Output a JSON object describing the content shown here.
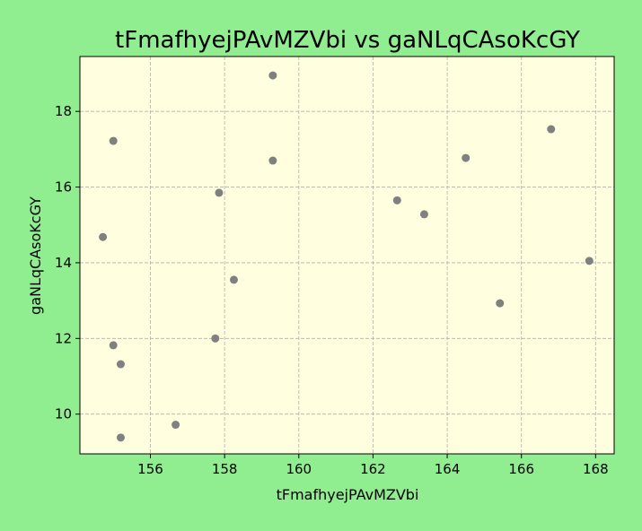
{
  "chart_data": {
    "type": "scatter",
    "title": "tFmafhyejPAvMZVbi vs gaNLqCAsoKcGY",
    "xlabel": "tFmafhyejPAvMZVbi",
    "ylabel": "gaNLqCAsoKcGY",
    "xlim": [
      154.1,
      168.5
    ],
    "ylim": [
      8.95,
      19.45
    ],
    "xticks": [
      156,
      158,
      160,
      162,
      164,
      166,
      168
    ],
    "yticks": [
      10,
      12,
      14,
      16,
      18
    ],
    "grid": true,
    "points": [
      {
        "x": 159.3,
        "y": 18.95
      },
      {
        "x": 155.0,
        "y": 17.22
      },
      {
        "x": 166.8,
        "y": 17.53
      },
      {
        "x": 164.5,
        "y": 16.77
      },
      {
        "x": 159.3,
        "y": 16.7
      },
      {
        "x": 157.85,
        "y": 15.85
      },
      {
        "x": 162.65,
        "y": 15.65
      },
      {
        "x": 163.38,
        "y": 15.28
      },
      {
        "x": 154.72,
        "y": 14.68
      },
      {
        "x": 167.83,
        "y": 14.05
      },
      {
        "x": 158.25,
        "y": 13.55
      },
      {
        "x": 165.42,
        "y": 12.93
      },
      {
        "x": 157.75,
        "y": 12.0
      },
      {
        "x": 155.0,
        "y": 11.82
      },
      {
        "x": 155.2,
        "y": 11.32
      },
      {
        "x": 156.68,
        "y": 9.72
      },
      {
        "x": 155.2,
        "y": 9.38
      }
    ],
    "colors": {
      "background": "#90ee90",
      "plot_area": "#ffffe0",
      "point": "#808080"
    }
  }
}
